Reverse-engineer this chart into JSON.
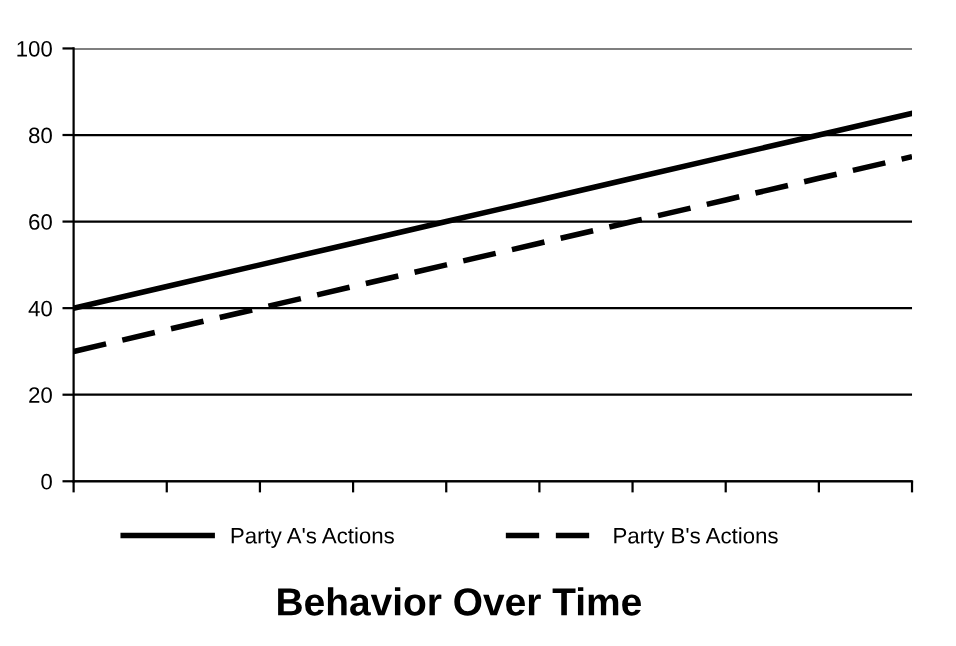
{
  "chart_data": {
    "type": "line",
    "title": "Behavior Over Time",
    "categories": [
      null,
      null,
      null,
      null,
      null,
      null,
      null,
      null,
      null,
      null
    ],
    "series": [
      {
        "name": "Party A's Actions",
        "color": "#000000",
        "line_style": "solid",
        "values": [
          40,
          45,
          50,
          55,
          60,
          65,
          70,
          75,
          80,
          85
        ]
      },
      {
        "name": "Party B's Actions",
        "color": "#000000",
        "line_style": "dashed",
        "values": [
          30,
          35,
          40,
          45,
          50,
          55,
          60,
          65,
          70,
          75
        ]
      }
    ],
    "ylim": [
      0,
      100
    ],
    "yticks": [
      0,
      20,
      40,
      60,
      80,
      100
    ],
    "grid": "y",
    "legend": "bottom",
    "marker": "none"
  }
}
